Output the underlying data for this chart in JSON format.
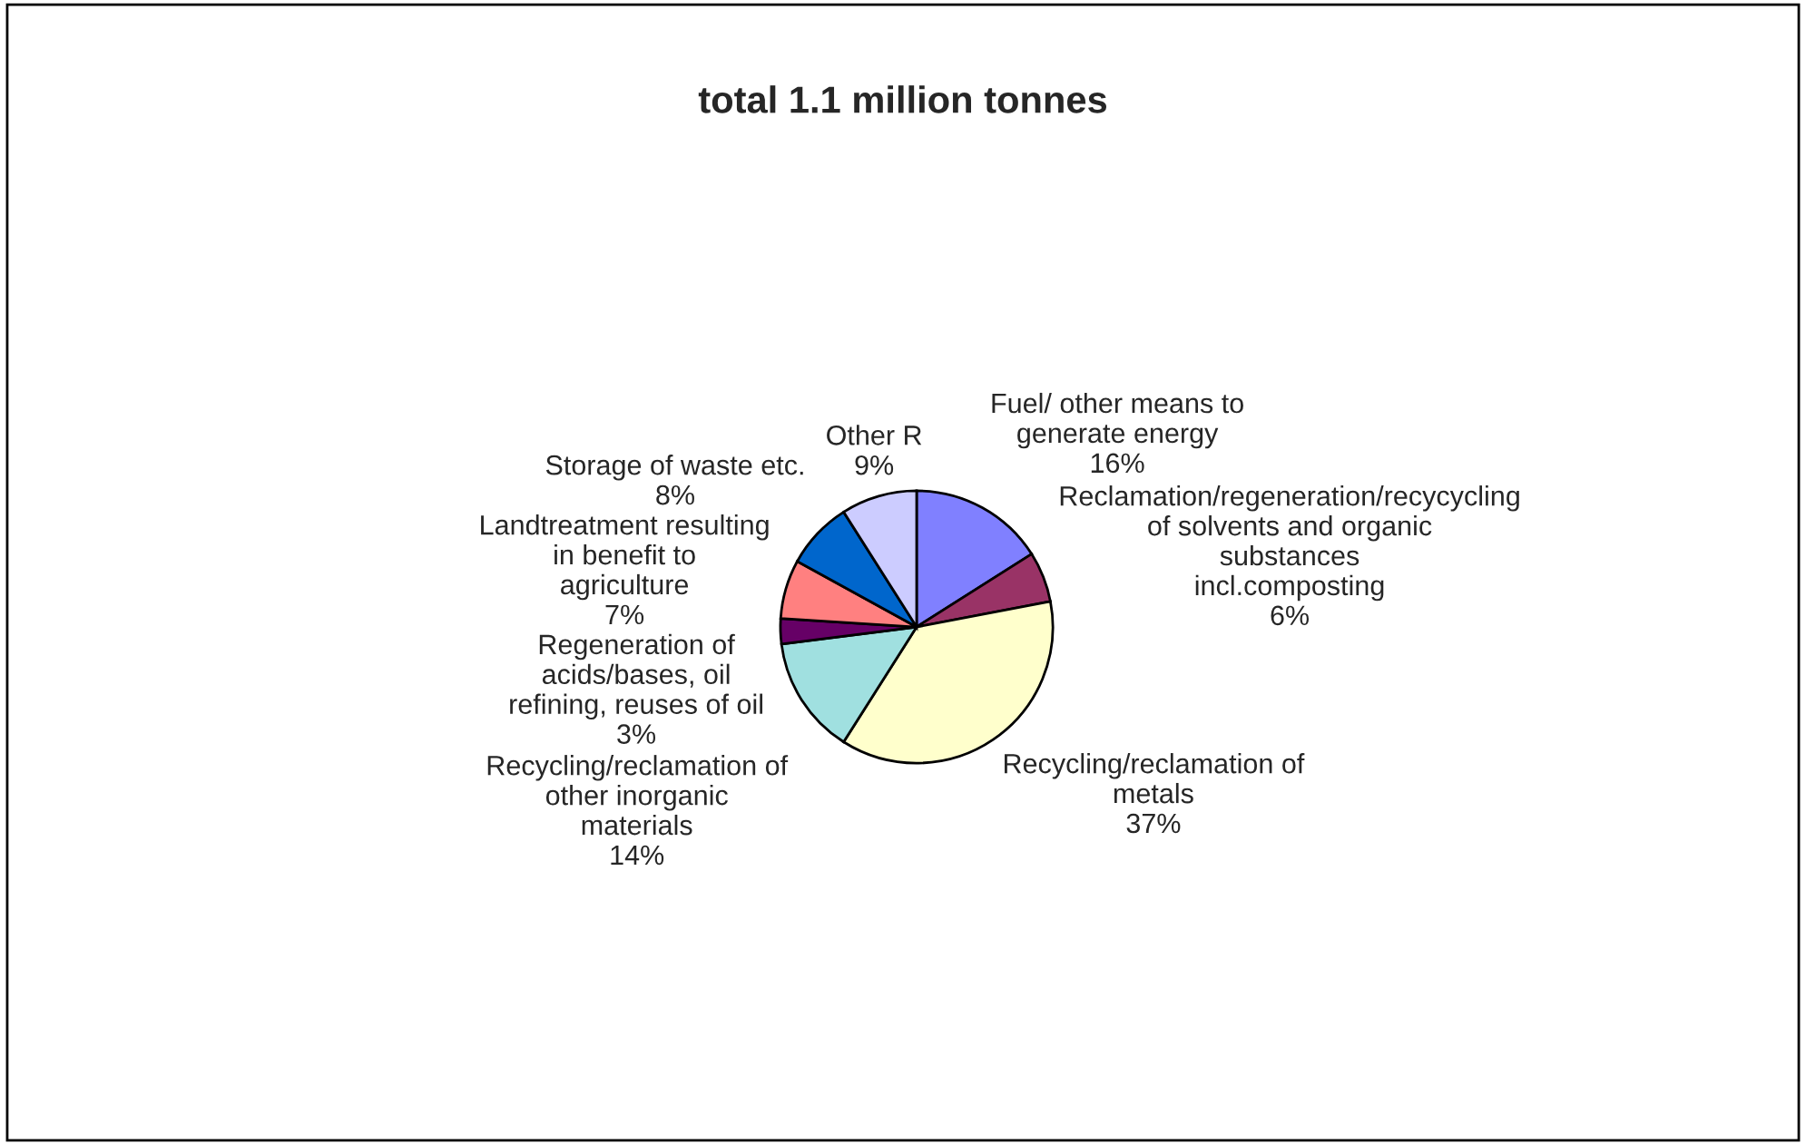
{
  "chart_data": {
    "type": "pie",
    "title": "total 1.1 million tonnes",
    "categories": [
      "Fuel/ other means to generate energy",
      "Reclamation/regeneration/recycycling of solvents and organic substances incl.composting",
      "Recycling/reclamation of metals",
      "Recycling/reclamation of other inorganic materials",
      "Regeneration of acids/bases, oil refining, reuses of oil",
      "Landtreatment resulting in benefit to agriculture",
      "Storage of waste etc.",
      "Other R"
    ],
    "values": [
      16,
      6,
      37,
      14,
      3,
      7,
      8,
      9
    ],
    "colors": [
      "#8080ff",
      "#993366",
      "#ffffcc",
      "#a0e0e0",
      "#660066",
      "#ff8080",
      "#0066cc",
      "#ccccff"
    ],
    "value_labels": [
      "16%",
      "6%",
      "37%",
      "14%",
      "3%",
      "7%",
      "8%",
      "9%"
    ]
  }
}
